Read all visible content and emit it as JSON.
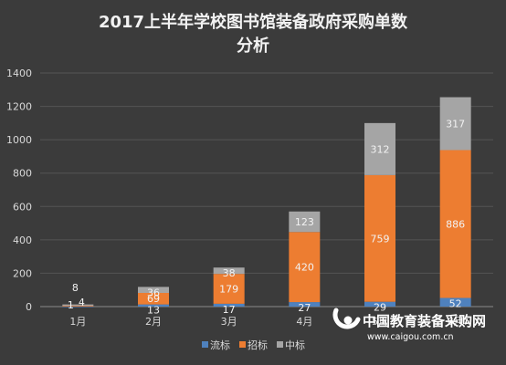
{
  "chart_data": {
    "type": "bar",
    "stacked": true,
    "title_line1": "2017上半年学校图书馆装备政府采购单数",
    "title_line2": "分析",
    "categories": [
      "1月",
      "2月",
      "3月",
      "4月",
      "5月",
      "6月"
    ],
    "series": [
      {
        "name": "流标",
        "color": "#4f81bd",
        "values": [
          1,
          13,
          17,
          27,
          29,
          52
        ]
      },
      {
        "name": "招标",
        "color": "#ed7d31",
        "values": [
          4,
          69,
          179,
          420,
          759,
          886
        ]
      },
      {
        "name": "中标",
        "color": "#a5a5a5",
        "values": [
          8,
          36,
          38,
          123,
          312,
          317
        ]
      }
    ],
    "ylim": [
      0,
      1400
    ],
    "yticks": [
      0,
      200,
      400,
      600,
      800,
      1000,
      1200,
      1400
    ],
    "grid": true,
    "legend_position": "bottom"
  },
  "watermark": {
    "name": "中国教育装备采购网",
    "url": "www.caigou.com.cn"
  }
}
